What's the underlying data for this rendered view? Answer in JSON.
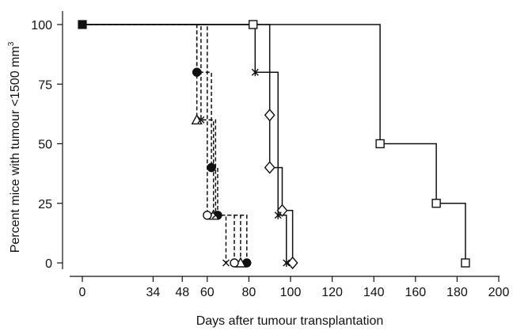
{
  "chart_data": {
    "type": "line",
    "step": true,
    "title": "",
    "xlabel": "Days after tumour transplantation",
    "ylabel_main": "Percent mice with tumour <1500 mm",
    "ylabel_sup": "3",
    "xlim": [
      0,
      200
    ],
    "ylim": [
      0,
      100
    ],
    "x_tick_labels": [
      "0",
      "34",
      "48",
      "60",
      "80",
      "100",
      "120",
      "140",
      "160",
      "180",
      "200"
    ],
    "x_tick_values": [
      0,
      34,
      48,
      60,
      80,
      100,
      120,
      140,
      160,
      180,
      200
    ],
    "y_tick_labels": [
      "0",
      "25",
      "50",
      "75",
      "100"
    ],
    "y_tick_values": [
      0,
      25,
      50,
      75,
      100
    ],
    "grid": false,
    "series": [
      {
        "line": "solid",
        "marker": "square-open",
        "points": [
          [
            0,
            100
          ],
          [
            82,
            100
          ],
          [
            143,
            50
          ],
          [
            170,
            25
          ],
          [
            184,
            0
          ]
        ]
      },
      {
        "line": "solid",
        "marker": "diamond-open",
        "points": [
          [
            0,
            100
          ],
          [
            90,
            62
          ],
          [
            90,
            40
          ],
          [
            96,
            22
          ],
          [
            101,
            0
          ]
        ]
      },
      {
        "line": "solid",
        "marker": "star",
        "points": [
          [
            0,
            100
          ],
          [
            83,
            80
          ],
          [
            94,
            20
          ],
          [
            98,
            0
          ]
        ]
      },
      {
        "line": "dashed",
        "marker": "circle-filled",
        "points": [
          [
            0,
            100
          ],
          [
            55,
            80
          ],
          [
            62,
            40
          ],
          [
            65,
            20
          ],
          [
            79,
            0
          ]
        ]
      },
      {
        "line": "dashed",
        "marker": "triangle-open",
        "points": [
          [
            0,
            100
          ],
          [
            55,
            60
          ],
          [
            63,
            20
          ],
          [
            76,
            0
          ]
        ]
      },
      {
        "line": "dashed",
        "marker": "cross",
        "points": [
          [
            0,
            100
          ],
          [
            57,
            60
          ],
          [
            64,
            20
          ],
          [
            69,
            0
          ]
        ]
      },
      {
        "line": "dashed",
        "marker": "circle-open",
        "points": [
          [
            0,
            100
          ],
          [
            60,
            20
          ],
          [
            73,
            0
          ]
        ]
      }
    ]
  }
}
